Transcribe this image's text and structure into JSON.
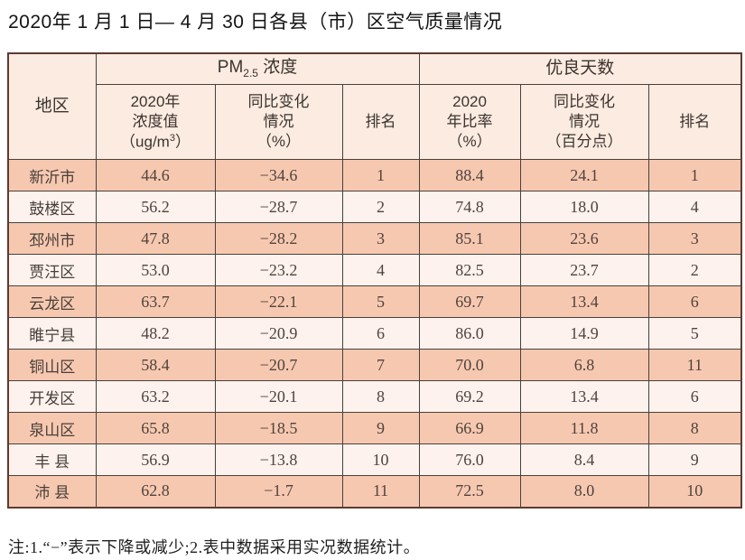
{
  "page": {
    "title": "2020年 1 月 1 日— 4 月 30 日各县（市）区空气质量情况",
    "note": "注:1.“−”表示下降或减少;2.表中数据采用实况数据统计。"
  },
  "colors": {
    "row_salmon": "#f7c8b0",
    "row_light": "#fdf2ed",
    "header_bg": "#fcebe0",
    "grid_border": "#48403c",
    "outer_border": "#5d3a30"
  },
  "table": {
    "header": {
      "region": "地区",
      "pm_group": {
        "prefix": "PM",
        "sub": "2.5",
        "suffix": " 浓度"
      },
      "days_group": "优良天数",
      "pm_value": {
        "line1": "2020年",
        "line2": "浓度值",
        "line3_pre": "（ug/m",
        "line3_sup": "3",
        "line3_post": "）"
      },
      "pm_change": "同比变化\n情况\n（%）",
      "pm_rank": "排名",
      "rate": "2020\n年比率\n（%）",
      "rate_change": "同比变化\n情况\n（百分点）",
      "rate_rank": "排名"
    },
    "rows": [
      {
        "region": "新沂市",
        "pm": "44.6",
        "pm_change": "−34.6",
        "pm_rank": "1",
        "rate": "88.4",
        "rate_change": "24.1",
        "rate_rank": "1"
      },
      {
        "region": "鼓楼区",
        "pm": "56.2",
        "pm_change": "−28.7",
        "pm_rank": "2",
        "rate": "74.8",
        "rate_change": "18.0",
        "rate_rank": "4"
      },
      {
        "region": "邳州市",
        "pm": "47.8",
        "pm_change": "−28.2",
        "pm_rank": "3",
        "rate": "85.1",
        "rate_change": "23.6",
        "rate_rank": "3"
      },
      {
        "region": "贾汪区",
        "pm": "53.0",
        "pm_change": "−23.2",
        "pm_rank": "4",
        "rate": "82.5",
        "rate_change": "23.7",
        "rate_rank": "2"
      },
      {
        "region": "云龙区",
        "pm": "63.7",
        "pm_change": "−22.1",
        "pm_rank": "5",
        "rate": "69.7",
        "rate_change": "13.4",
        "rate_rank": "6"
      },
      {
        "region": "睢宁县",
        "pm": "48.2",
        "pm_change": "−20.9",
        "pm_rank": "6",
        "rate": "86.0",
        "rate_change": "14.9",
        "rate_rank": "5"
      },
      {
        "region": "铜山区",
        "pm": "58.4",
        "pm_change": "−20.7",
        "pm_rank": "7",
        "rate": "70.0",
        "rate_change": "6.8",
        "rate_rank": "11"
      },
      {
        "region": "开发区",
        "pm": "63.2",
        "pm_change": "−20.1",
        "pm_rank": "8",
        "rate": "69.2",
        "rate_change": "13.4",
        "rate_rank": "6"
      },
      {
        "region": "泉山区",
        "pm": "65.8",
        "pm_change": "−18.5",
        "pm_rank": "9",
        "rate": "66.9",
        "rate_change": "11.8",
        "rate_rank": "8"
      },
      {
        "region": "丰 县",
        "pm": "56.9",
        "pm_change": "−13.8",
        "pm_rank": "10",
        "rate": "76.0",
        "rate_change": "8.4",
        "rate_rank": "9"
      },
      {
        "region": "沛 县",
        "pm": "62.8",
        "pm_change": "−1.7",
        "pm_rank": "11",
        "rate": "72.5",
        "rate_change": "8.0",
        "rate_rank": "10"
      }
    ]
  }
}
